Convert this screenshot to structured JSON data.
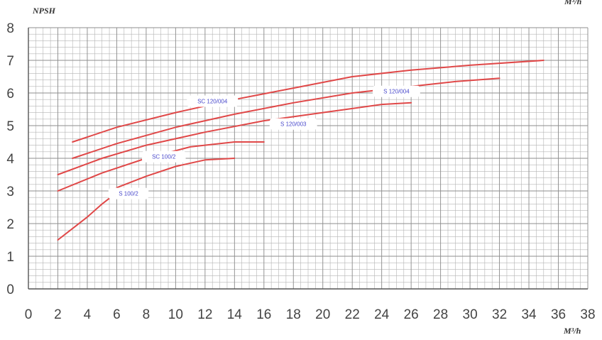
{
  "chart_data": {
    "type": "line",
    "ylabel": "NPSH",
    "xlabel": "M³/h",
    "unit_top_right": "M³/h",
    "xlim": [
      0,
      38
    ],
    "ylim": [
      0,
      8
    ],
    "x_ticks": [
      "0",
      "2",
      "4",
      "6",
      "8",
      "10",
      "12",
      "14",
      "16",
      "18",
      "20",
      "22",
      "24",
      "26",
      "28",
      "30",
      "32",
      "34",
      "36",
      "38"
    ],
    "y_ticks": [
      "0",
      "1",
      "2",
      "3",
      "4",
      "5",
      "6",
      "7",
      "8"
    ],
    "grid": true,
    "minor_grid": true,
    "colors": {
      "line": "#e04848",
      "grid": "#b4b4b4",
      "axis": "#555555",
      "label": "#4a4acc"
    },
    "series": [
      {
        "name": "SC 120/004",
        "label_at": [
          12.5,
          5.75
        ],
        "points": [
          [
            3,
            4.5
          ],
          [
            6,
            4.95
          ],
          [
            10,
            5.4
          ],
          [
            14,
            5.8
          ],
          [
            18,
            6.15
          ],
          [
            22,
            6.5
          ],
          [
            26,
            6.7
          ],
          [
            30,
            6.85
          ],
          [
            35,
            7.0
          ]
        ]
      },
      {
        "name": "S 120/004",
        "label_at": [
          25,
          6.05
        ],
        "points": [
          [
            3,
            4.0
          ],
          [
            6,
            4.45
          ],
          [
            10,
            4.95
          ],
          [
            14,
            5.35
          ],
          [
            18,
            5.7
          ],
          [
            22,
            6.0
          ],
          [
            26,
            6.2
          ],
          [
            29,
            6.35
          ],
          [
            32,
            6.45
          ]
        ]
      },
      {
        "name": "",
        "points": [
          [
            2,
            3.5
          ],
          [
            5,
            4.0
          ],
          [
            8,
            4.4
          ],
          [
            12,
            4.8
          ],
          [
            16,
            5.15
          ],
          [
            20,
            5.4
          ],
          [
            24,
            5.65
          ],
          [
            26,
            5.7
          ]
        ]
      },
      {
        "name": "S 120/003",
        "label_at": [
          18,
          5.05
        ],
        "points": []
      },
      {
        "name": "SC 100/2",
        "label_at": [
          9.2,
          4.05
        ],
        "points": [
          [
            2,
            3.0
          ],
          [
            5,
            3.55
          ],
          [
            8,
            4.0
          ],
          [
            11,
            4.35
          ],
          [
            14,
            4.5
          ],
          [
            16,
            4.5
          ]
        ]
      },
      {
        "name": "",
        "points": [
          [
            6,
            3.1
          ],
          [
            8,
            3.45
          ],
          [
            10,
            3.75
          ],
          [
            12,
            3.95
          ],
          [
            14,
            4.0
          ]
        ]
      },
      {
        "name": "S 100/2",
        "label_at": [
          6.8,
          2.92
        ],
        "points": [
          [
            2,
            1.5
          ],
          [
            3,
            1.85
          ],
          [
            4,
            2.2
          ],
          [
            5,
            2.6
          ],
          [
            6,
            2.95
          ]
        ]
      }
    ]
  }
}
